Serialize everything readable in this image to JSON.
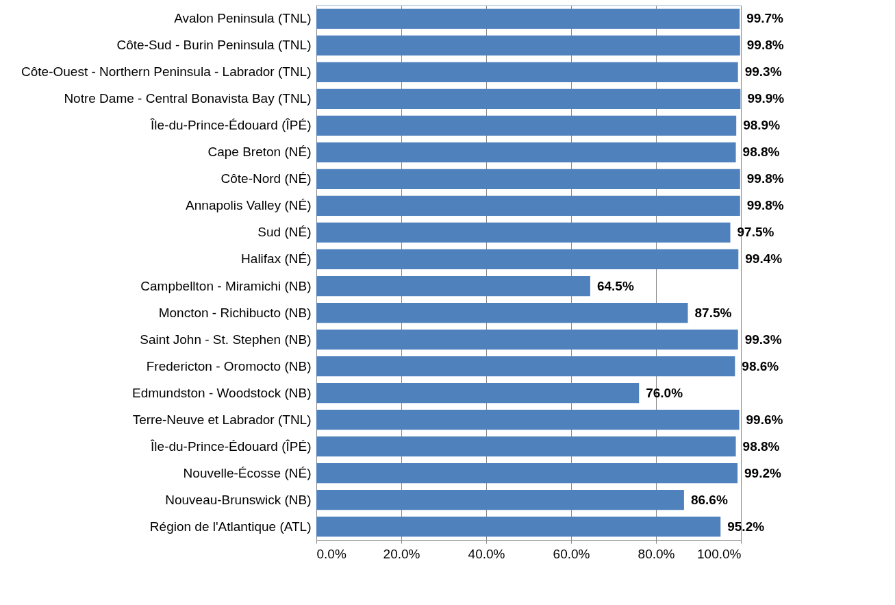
{
  "chart_data": {
    "type": "bar",
    "orientation": "horizontal",
    "categories": [
      "Avalon Peninsula (TNL)",
      "Côte-Sud - Burin Peninsula (TNL)",
      "Côte-Ouest - Northern Peninsula - Labrador (TNL)",
      "Notre Dame - Central Bonavista Bay (TNL)",
      "Île-du-Prince-Édouard (ÎPÉ)",
      "Cape Breton (NÉ)",
      "Côte-Nord (NÉ)",
      "Annapolis Valley (NÉ)",
      "Sud (NÉ)",
      "Halifax (NÉ)",
      "Campbellton - Miramichi (NB)",
      "Moncton - Richibucto (NB)",
      "Saint John - St. Stephen (NB)",
      "Fredericton - Oromocto (NB)",
      "Edmundston - Woodstock (NB)",
      "Terre-Neuve et Labrador (TNL)",
      "Île-du-Prince-Édouard (ÎPÉ)",
      "Nouvelle-Écosse (NÉ)",
      "Nouveau-Brunswick (NB)",
      "Région de l'Atlantique (ATL)"
    ],
    "values": [
      99.7,
      99.8,
      99.3,
      99.9,
      98.9,
      98.8,
      99.8,
      99.8,
      97.5,
      99.4,
      64.5,
      87.5,
      99.3,
      98.6,
      76.0,
      99.6,
      98.8,
      99.2,
      86.6,
      95.2
    ],
    "value_labels": [
      "99.7%",
      "99.8%",
      "99.3%",
      "99.9%",
      "98.9%",
      "98.8%",
      "99.8%",
      "99.8%",
      "97.5%",
      "99.4%",
      "64.5%",
      "87.5%",
      "99.3%",
      "98.6%",
      "76.0%",
      "99.6%",
      "98.8%",
      "99.2%",
      "86.6%",
      "95.2%"
    ],
    "color": "#4f81bd",
    "xlim": [
      0,
      100
    ],
    "xticks": [
      {
        "value": 0,
        "label": "0.0%"
      },
      {
        "value": 20,
        "label": "20.0%"
      },
      {
        "value": 40,
        "label": "40.0%"
      },
      {
        "value": 60,
        "label": "60.0%"
      },
      {
        "value": 80,
        "label": "80.0%"
      },
      {
        "value": 100,
        "label": "100.0%"
      }
    ],
    "grid": "x"
  }
}
